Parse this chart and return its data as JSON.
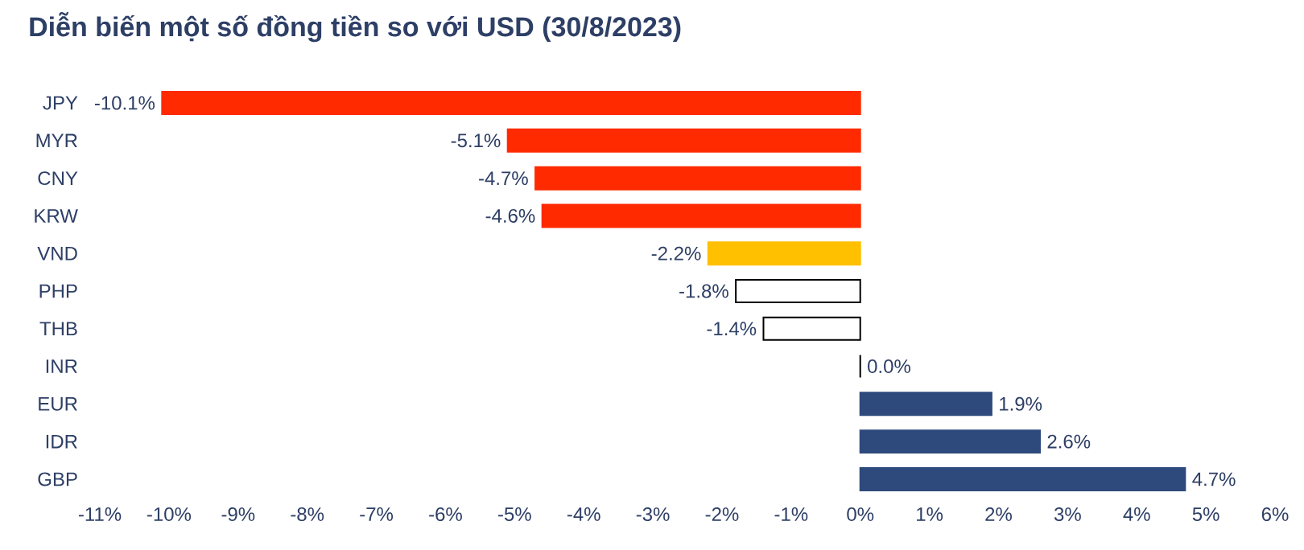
{
  "chart_data": {
    "type": "bar",
    "orientation": "horizontal",
    "title": "Diễn biến một số đồng tiền so với USD (30/8/2023)",
    "categories": [
      "JPY",
      "MYR",
      "CNY",
      "KRW",
      "VND",
      "PHP",
      "THB",
      "INR",
      "EUR",
      "IDR",
      "GBP"
    ],
    "values": [
      -10.1,
      -5.1,
      -4.7,
      -4.6,
      -2.2,
      -1.8,
      -1.4,
      0.0,
      1.9,
      2.6,
      4.7
    ],
    "colors": [
      "#ff2a00",
      "#ff2a00",
      "#ff2a00",
      "#ff2a00",
      "#ffc000",
      "#ffffff",
      "#ffffff",
      "#ffffff",
      "#2e4a7d",
      "#2e4a7d",
      "#2e4a7d"
    ],
    "value_labels": [
      "-10.1%",
      "-5.1%",
      "-4.7%",
      "-4.6%",
      "-2.2%",
      "-1.8%",
      "-1.4%",
      "0.0%",
      "1.9%",
      "2.6%",
      "4.7%"
    ],
    "xlim": [
      -11,
      6
    ],
    "xticks": [
      {
        "value": -11,
        "label": "-11%"
      },
      {
        "value": -10,
        "label": "-10%"
      },
      {
        "value": -9,
        "label": "-9%"
      },
      {
        "value": -8,
        "label": "-8%"
      },
      {
        "value": -7,
        "label": "-7%"
      },
      {
        "value": -6,
        "label": "-6%"
      },
      {
        "value": -5,
        "label": "-5%"
      },
      {
        "value": -4,
        "label": "-4%"
      },
      {
        "value": -3,
        "label": "-3%"
      },
      {
        "value": -2,
        "label": "-2%"
      },
      {
        "value": -1,
        "label": "-1%"
      },
      {
        "value": 0,
        "label": "0%"
      },
      {
        "value": 1,
        "label": "1%"
      },
      {
        "value": 2,
        "label": "2%"
      },
      {
        "value": 3,
        "label": "3%"
      },
      {
        "value": 4,
        "label": "4%"
      },
      {
        "value": 5,
        "label": "5%"
      },
      {
        "value": 6,
        "label": "6%"
      }
    ]
  }
}
